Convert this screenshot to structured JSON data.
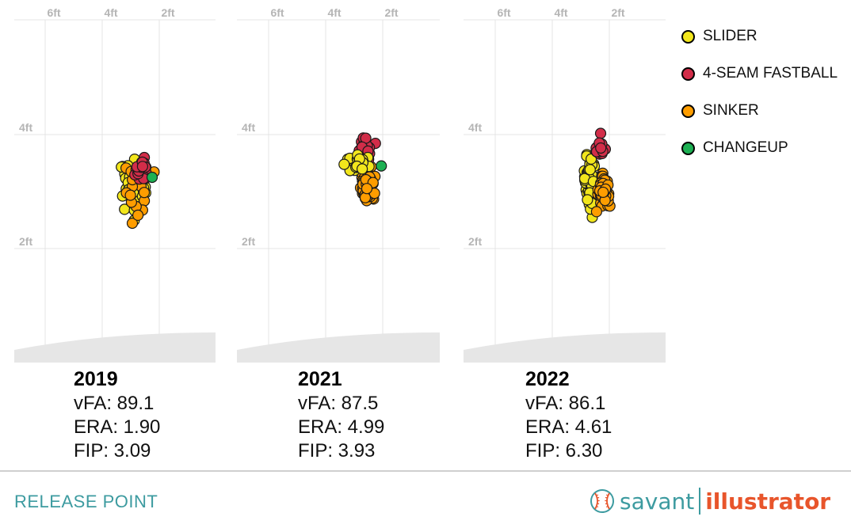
{
  "chart_data": {
    "type": "scatter",
    "title": "RELEASE POINT",
    "x_ticks": [
      "6ft",
      "4ft",
      "2ft"
    ],
    "y_ticks": [
      "4ft",
      "2ft"
    ],
    "legend_placement": "right",
    "series": [
      {
        "name": "SLIDER",
        "color": "#f2e61c"
      },
      {
        "name": "4-SEAM FASTBALL",
        "color": "#d22d49"
      },
      {
        "name": "SINKER",
        "color": "#fe9d00"
      },
      {
        "name": "CHANGEUP",
        "color": "#1db053"
      }
    ],
    "panels": [
      {
        "year": "2019",
        "vfa": "vFA: 89.1",
        "era": "ERA: 1.90",
        "fip": "FIP: 3.09",
        "clusters": [
          {
            "series": "SLIDER",
            "n": 48,
            "cx": 2.95,
            "cy": 3.1,
            "sx": 0.42,
            "sy": 0.42
          },
          {
            "series": "SINKER",
            "n": 16,
            "cx": 2.75,
            "cy": 3.0,
            "sx": 0.5,
            "sy": 0.5
          },
          {
            "series": "4-SEAM FASTBALL",
            "n": 28,
            "cx": 2.6,
            "cy": 3.35,
            "sx": 0.22,
            "sy": 0.18
          },
          {
            "series": "CHANGEUP",
            "n": 1,
            "cx": 2.25,
            "cy": 3.25,
            "sx": 0,
            "sy": 0
          }
        ]
      },
      {
        "year": "2021",
        "vfa": "vFA: 87.5",
        "era": "ERA: 4.99",
        "fip": "FIP: 3.93",
        "clusters": [
          {
            "series": "SINKER",
            "n": 70,
            "cx": 2.55,
            "cy": 3.1,
            "sx": 0.22,
            "sy": 0.28
          },
          {
            "series": "4-SEAM FASTBALL",
            "n": 40,
            "cx": 2.6,
            "cy": 3.75,
            "sx": 0.18,
            "sy": 0.15
          },
          {
            "series": "SLIDER",
            "n": 34,
            "cx": 2.85,
            "cy": 3.5,
            "sx": 0.33,
            "sy": 0.15
          },
          {
            "series": "CHANGEUP",
            "n": 1,
            "cx": 2.05,
            "cy": 3.45,
            "sx": 0,
            "sy": 0
          }
        ]
      },
      {
        "year": "2022",
        "vfa": "vFA: 86.1",
        "era": "ERA: 4.61",
        "fip": "FIP: 6.30",
        "clusters": [
          {
            "series": "SLIDER",
            "n": 60,
            "cx": 2.7,
            "cy": 3.2,
            "sx": 0.18,
            "sy": 0.35
          },
          {
            "series": "SINKER",
            "n": 55,
            "cx": 2.2,
            "cy": 3.0,
            "sx": 0.2,
            "sy": 0.25
          },
          {
            "series": "4-SEAM FASTBALL",
            "n": 20,
            "cx": 2.35,
            "cy": 3.75,
            "sx": 0.18,
            "sy": 0.15
          }
        ]
      }
    ]
  },
  "footer": {
    "title": "RELEASE POINT",
    "brand_left": "savant",
    "brand_right": "illustrator"
  },
  "colors": {
    "accent_teal": "#3d9ba0",
    "accent_orange": "#e8552b"
  }
}
